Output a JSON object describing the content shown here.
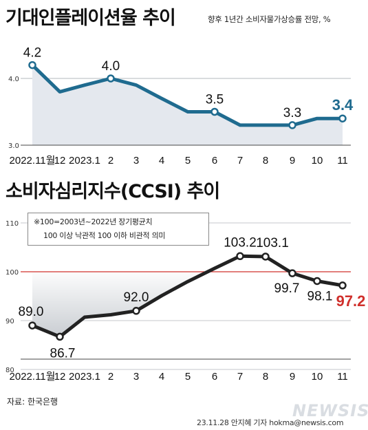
{
  "chart_data": [
    {
      "type": "line",
      "title": "기대인플레이션율 추이",
      "subtitle": "향후 1년간 소비자물가상승률 전망, %",
      "categories": [
        "2022.11월",
        "12",
        "2023.1",
        "2",
        "3",
        "4",
        "5",
        "6",
        "7",
        "8",
        "9",
        "10",
        "11"
      ],
      "values": [
        4.2,
        3.8,
        3.9,
        4.0,
        3.9,
        3.7,
        3.5,
        3.5,
        3.3,
        3.3,
        3.3,
        3.4,
        3.4
      ],
      "data_labels": [
        {
          "index": 0,
          "text": "4.2"
        },
        {
          "index": 3,
          "text": "4.0"
        },
        {
          "index": 7,
          "text": "3.5"
        },
        {
          "index": 10,
          "text": "3.3"
        },
        {
          "index": 12,
          "text": "3.4"
        }
      ],
      "yticks": [
        "4.0",
        "3.0"
      ],
      "ylim": [
        3.0,
        4.4
      ],
      "grid": true,
      "line_color": "#1f6b8f"
    },
    {
      "type": "line",
      "title": "소비자심리지수(CCSI) 추이",
      "categories": [
        "2022.11월",
        "12",
        "2023.1",
        "2",
        "3",
        "4",
        "5",
        "6",
        "7",
        "8",
        "9",
        "10",
        "11"
      ],
      "values": [
        89.0,
        86.7,
        90.7,
        91.2,
        92.0,
        95.1,
        98.0,
        100.7,
        103.2,
        103.1,
        99.7,
        98.1,
        97.2
      ],
      "data_labels": [
        {
          "index": 0,
          "text": "89.0"
        },
        {
          "index": 1,
          "text": "86.7"
        },
        {
          "index": 4,
          "text": "92.0"
        },
        {
          "index": 8,
          "text": "103.2"
        },
        {
          "index": 9,
          "text": "103.1"
        },
        {
          "index": 10,
          "text": "99.7"
        },
        {
          "index": 11,
          "text": "98.1"
        },
        {
          "index": 12,
          "text": "97.2"
        }
      ],
      "yticks": [
        "110",
        "100",
        "90",
        "80"
      ],
      "ylim": [
        80,
        110
      ],
      "reference_line": 100,
      "grid": true,
      "line_color": "#222222",
      "note": [
        "※100=2003년~2022년 장기평균치",
        "100 이상 낙관적 100 이하 비관적 의미"
      ]
    }
  ],
  "source": "자료: 한국은행",
  "credit": "23.11.28 안지혜 기자 hokma@newsis.com",
  "logo_text": "NEWSIS"
}
